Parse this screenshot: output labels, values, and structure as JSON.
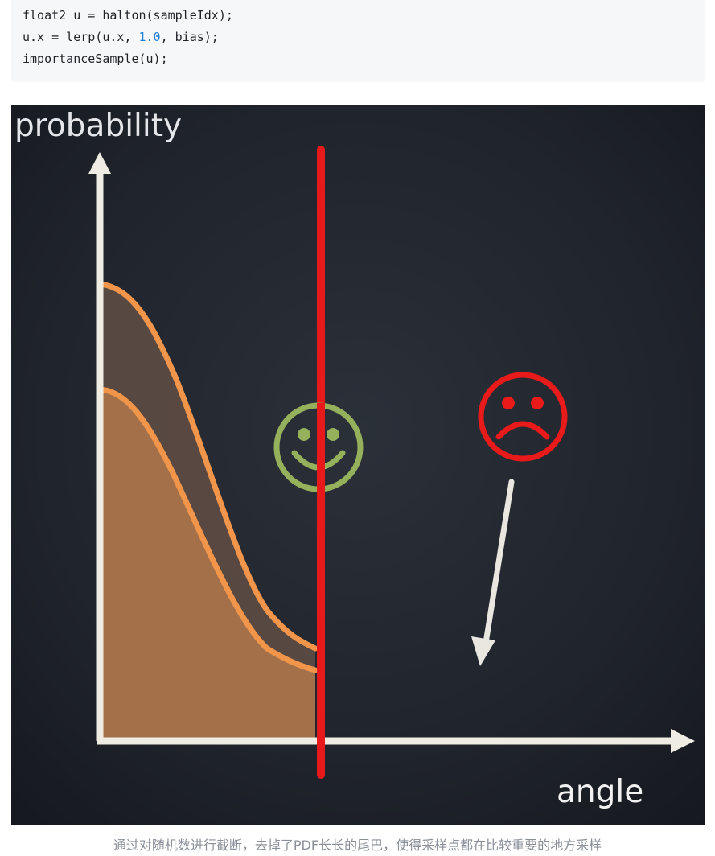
{
  "code": {
    "line1": "float2 u = halton(sampleIdx);",
    "line2_prefix": "u.x = lerp(u.x, ",
    "line2_number": "1.0",
    "line2_suffix": ", bias);",
    "line3": "importanceSample(u);"
  },
  "figure": {
    "y_axis_label": "probability",
    "x_axis_label": "angle",
    "happy_face": "happy-face",
    "sad_face": "sad-face",
    "colors": {
      "background": "#20232b",
      "curve": "#f0954a",
      "cutoff_line": "#e8191b",
      "happy": "#95b15c",
      "sad": "#e81a1a",
      "axis": "#efece4"
    }
  },
  "caption": "通过对随机数进行截断，去掉了PDF长长的尾巴，使得采样点都在比较重要的地方采样"
}
